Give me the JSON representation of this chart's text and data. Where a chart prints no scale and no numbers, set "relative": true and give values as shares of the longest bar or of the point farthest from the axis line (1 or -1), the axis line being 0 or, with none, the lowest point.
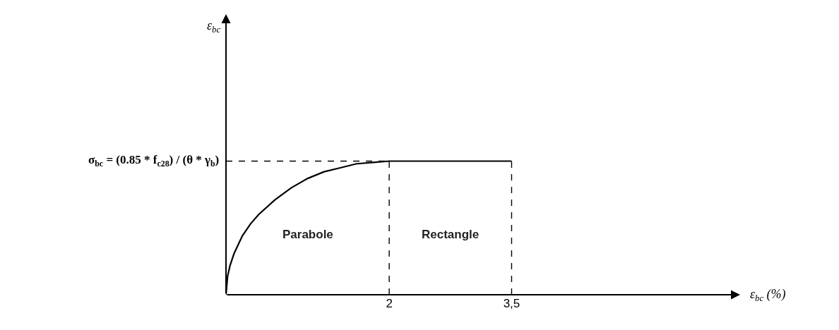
{
  "chart_data": {
    "type": "line",
    "relative": true,
    "xlabel": "ε$_{bc}$ (%)",
    "x": [
      0,
      0.02,
      0.05,
      0.1,
      0.2,
      0.3,
      0.4,
      0.6,
      0.8,
      1,
      1.2,
      1.4,
      1.6,
      1.8,
      2,
      3.5
    ],
    "series": [
      {
        "color": "#000000",
        "values": [
          0,
          0.14,
          0.22,
          0.31,
          0.44,
          0.53,
          0.6,
          0.71,
          0.8,
          0.87,
          0.92,
          0.95,
          0.98,
          0.99,
          1,
          1
        ]
      }
    ],
    "xlim": [
      0,
      6.3
    ],
    "xticks": [
      2,
      {
        "value": 3.5,
        "label": "3,5"
      }
    ],
    "tick_labels": "x",
    "marker": "none",
    "line_style": "solid",
    "ref_lines": [
      {
        "axis": "y",
        "value": 1,
        "label": "σ$_{bc}$ = (0.85 * f$_{c28}$) / (θ * γ$_{b}$)",
        "line_style": "dashed",
        "color": "#000000"
      },
      {
        "axis": "x",
        "value": 2,
        "line_style": "dashed",
        "color": "#000000"
      },
      {
        "axis": "x",
        "value": 3.5,
        "line_style": "dashed",
        "color": "#000000"
      }
    ],
    "annotations": [
      "Parabole",
      "Rectangle",
      "ε$_{bc}$"
    ]
  }
}
